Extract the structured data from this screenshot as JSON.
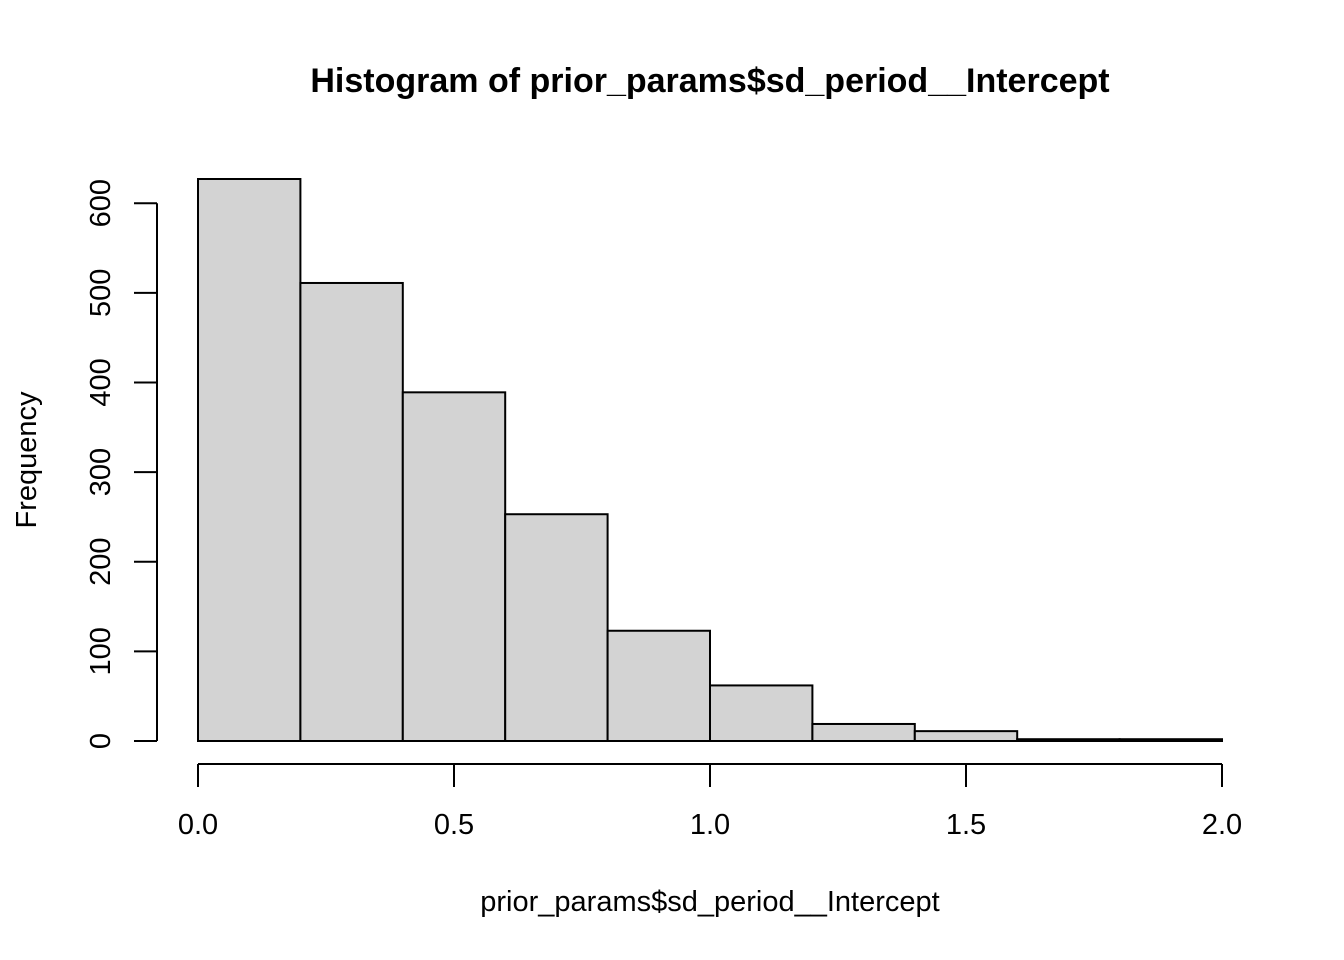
{
  "chart_data": {
    "type": "bar",
    "title": "Histogram of prior_params$sd_period__Intercept",
    "xlabel": "prior_params$sd_period__Intercept",
    "ylabel": "Frequency",
    "bins": [
      {
        "x0": 0.0,
        "x1": 0.2,
        "count": 627
      },
      {
        "x0": 0.2,
        "x1": 0.4,
        "count": 511
      },
      {
        "x0": 0.4,
        "x1": 0.6,
        "count": 389
      },
      {
        "x0": 0.6,
        "x1": 0.8,
        "count": 253
      },
      {
        "x0": 0.8,
        "x1": 1.0,
        "count": 123
      },
      {
        "x0": 1.0,
        "x1": 1.2,
        "count": 62
      },
      {
        "x0": 1.2,
        "x1": 1.4,
        "count": 19
      },
      {
        "x0": 1.4,
        "x1": 1.6,
        "count": 11
      },
      {
        "x0": 1.6,
        "x1": 1.8,
        "count": 2
      },
      {
        "x0": 1.8,
        "x1": 2.0,
        "count": 2
      }
    ],
    "xlim": [
      0,
      2
    ],
    "ylim": [
      0,
      627
    ],
    "xticks": [
      0.0,
      0.5,
      1.0,
      1.5,
      2.0
    ],
    "xtick_labels": [
      "0.0",
      "0.5",
      "1.0",
      "1.5",
      "2.0"
    ],
    "yticks": [
      0,
      100,
      200,
      300,
      400,
      500,
      600
    ],
    "ytick_labels": [
      "0",
      "100",
      "200",
      "300",
      "400",
      "500",
      "600"
    ],
    "grid": false,
    "colors": {
      "bar_fill": "#d3d3d3",
      "bar_stroke": "#000000"
    }
  }
}
